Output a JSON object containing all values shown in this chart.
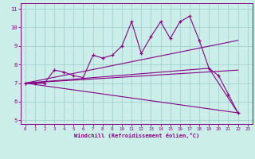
{
  "xlabel": "Windchill (Refroidissement éolien,°C)",
  "background_color": "#cceee8",
  "line_color": "#880088",
  "grid_color": "#99cccc",
  "tick_label_color": "#880088",
  "xlim": [
    -0.5,
    23.5
  ],
  "ylim": [
    4.8,
    11.3
  ],
  "yticks": [
    5,
    6,
    7,
    8,
    9,
    10,
    11
  ],
  "xticks": [
    0,
    1,
    2,
    3,
    4,
    5,
    6,
    7,
    8,
    9,
    10,
    11,
    12,
    13,
    14,
    15,
    16,
    17,
    18,
    19,
    20,
    21,
    22,
    23
  ],
  "line1_x": [
    0,
    1,
    2,
    3,
    4,
    5,
    6,
    7,
    8,
    9,
    10,
    11,
    12,
    13,
    14,
    15,
    16,
    17,
    18,
    19,
    20,
    21,
    22
  ],
  "line1_y": [
    7.0,
    7.0,
    7.0,
    7.7,
    7.6,
    7.4,
    7.3,
    8.5,
    8.35,
    8.5,
    9.0,
    10.3,
    8.6,
    9.5,
    10.3,
    9.4,
    10.3,
    10.6,
    9.3,
    7.8,
    7.4,
    6.4,
    5.4
  ],
  "line2_x": [
    0,
    19,
    22
  ],
  "line2_y": [
    7.0,
    7.8,
    5.4
  ],
  "line3_x": [
    0,
    22
  ],
  "line3_y": [
    7.0,
    9.3
  ],
  "line4_x": [
    0,
    22
  ],
  "line4_y": [
    7.0,
    7.7
  ],
  "line5_x": [
    0,
    22
  ],
  "line5_y": [
    7.0,
    5.4
  ]
}
